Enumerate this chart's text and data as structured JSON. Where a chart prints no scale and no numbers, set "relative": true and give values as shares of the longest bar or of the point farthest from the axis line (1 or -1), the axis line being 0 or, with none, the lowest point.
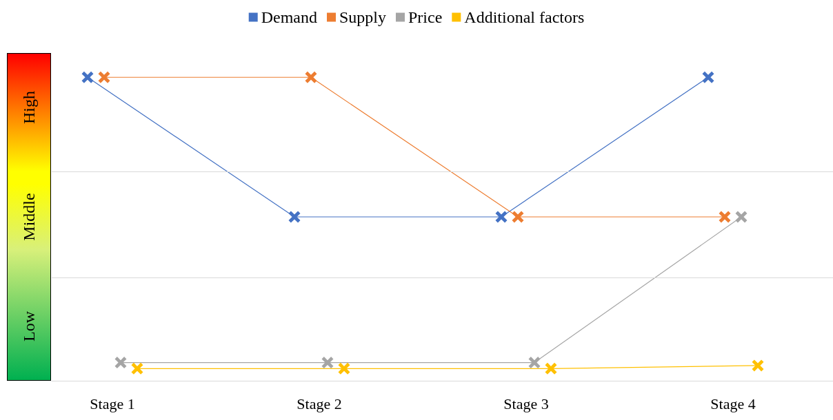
{
  "chart_data": {
    "type": "line",
    "categories": [
      "Stage 1",
      "Stage 2",
      "Stage 3",
      "Stage 4"
    ],
    "series": [
      {
        "name": "Demand",
        "color": "#4472c4",
        "values": [
          1,
          0.54,
          0.54,
          1
        ]
      },
      {
        "name": "Supply",
        "color": "#ed7d31",
        "values": [
          1,
          1,
          0.54,
          0.54
        ]
      },
      {
        "name": "Price",
        "color": "#a5a5a5",
        "values": [
          0.06,
          0.06,
          0.06,
          0.54
        ]
      },
      {
        "name": "Additional factors",
        "color": "#ffc000",
        "values": [
          0.04,
          0.04,
          0.04,
          0.05
        ]
      }
    ],
    "relative": true,
    "annotations": [
      "Low",
      "Middle",
      "High"
    ],
    "ref_lines": [
      {
        "axis": "y",
        "value": 0.34,
        "color": "#d9d9d9"
      },
      {
        "axis": "y",
        "value": 0.69,
        "color": "#d9d9d9"
      }
    ],
    "legend": "top",
    "marker": "cross",
    "line_style": "solid"
  }
}
